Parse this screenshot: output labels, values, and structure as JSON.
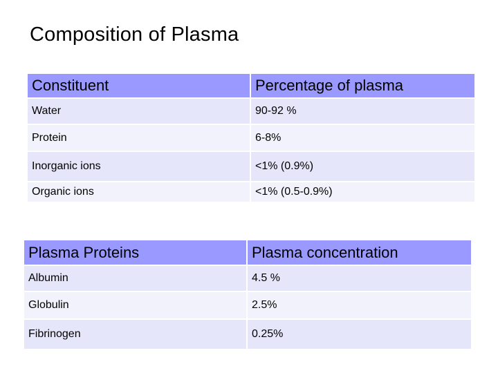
{
  "title": "Composition of Plasma",
  "plasma_table": {
    "headers": [
      "Constituent",
      "Percentage of plasma"
    ],
    "rows": [
      [
        "Water",
        "90-92 %"
      ],
      [
        "Protein",
        "6-8%"
      ],
      [
        "Inorganic ions",
        "<1% (0.9%)"
      ],
      [
        "Organic ions",
        "<1% (0.5-0.9%)"
      ]
    ]
  },
  "proteins_table": {
    "headers": [
      "Plasma Proteins",
      "Plasma concentration"
    ],
    "rows": [
      [
        "Albumin",
        "4.5 %"
      ],
      [
        "Globulin",
        "2.5%"
      ],
      [
        "Fibrinogen",
        "0.25%"
      ]
    ]
  },
  "colors": {
    "header_bg": "#9999ff",
    "row_bg_odd": "#e6e6fa",
    "row_bg_even": "#f2f2fc"
  }
}
